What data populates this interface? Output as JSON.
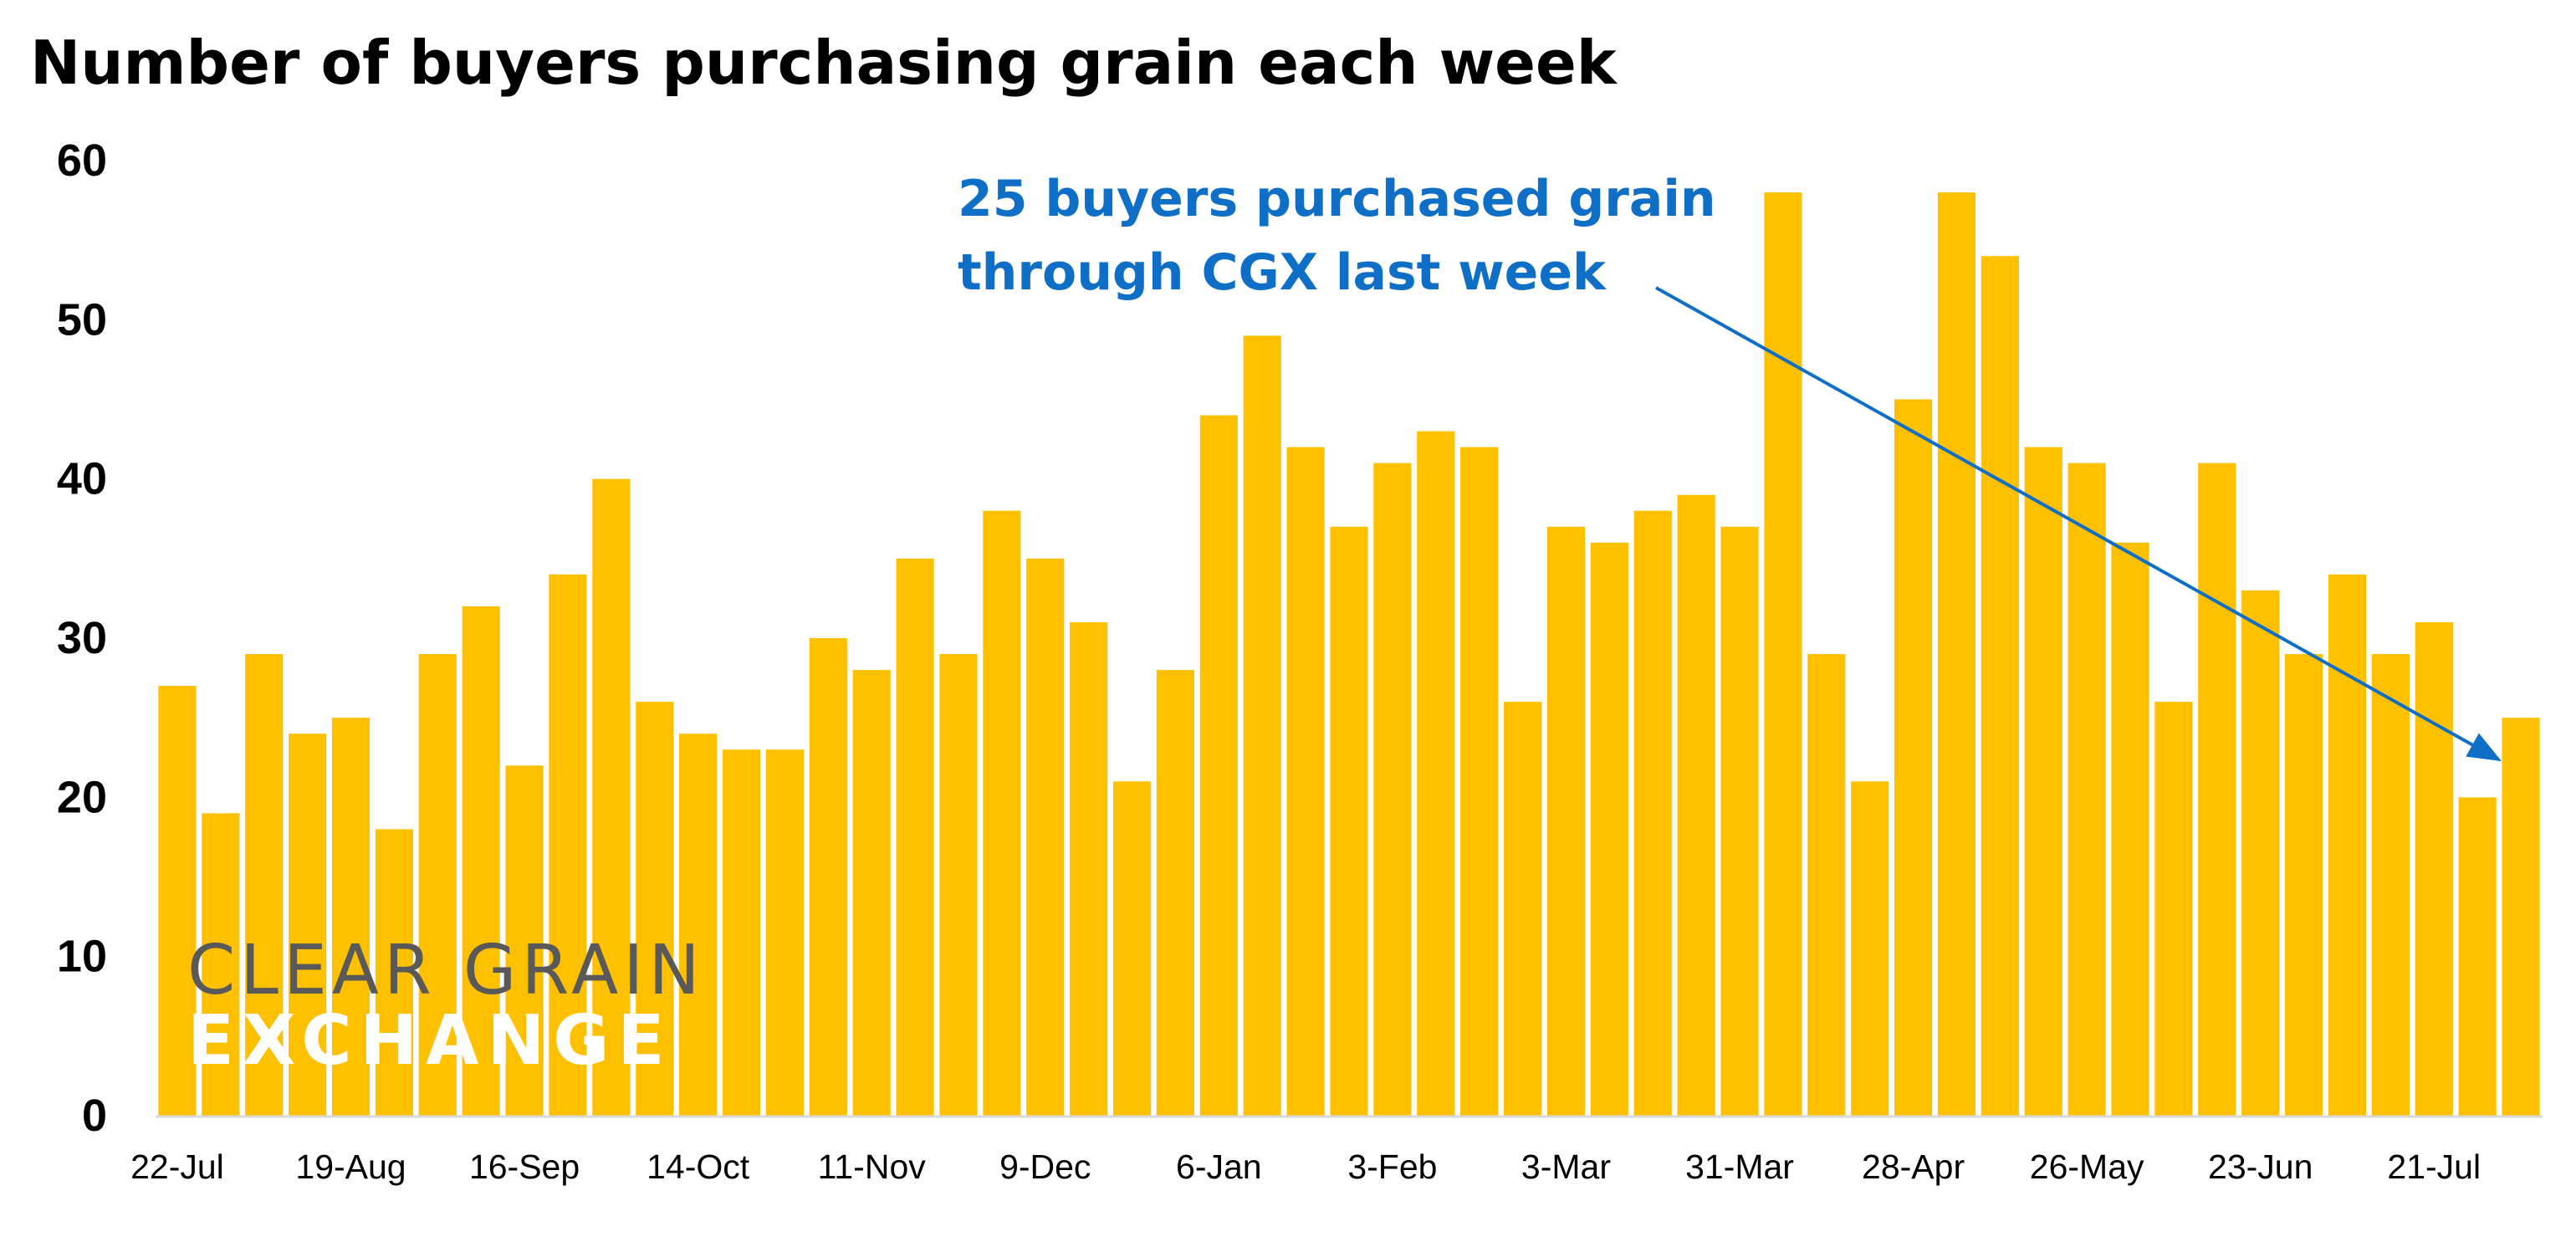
{
  "colors": {
    "bar": "#FFC000",
    "annotation": "#0F6FC6",
    "axis": "#D9D9D9",
    "logo_grey": "#595959",
    "logo_white": "#FFFFFF"
  },
  "logo": {
    "line1": "CLEAR GRAIN",
    "line2": "EXCHANGE"
  },
  "annotation": {
    "line1": "25 buyers purchased grain",
    "line2": "through CGX last week",
    "arrow_icon": "arrow-right-down-icon"
  },
  "chart_data": {
    "type": "bar",
    "title": "Number of buyers purchasing grain each week",
    "xlabel": "",
    "ylabel": "",
    "ylim": [
      0,
      60
    ],
    "yticks": [
      0,
      10,
      20,
      30,
      40,
      50,
      60
    ],
    "grid": false,
    "legend": "none",
    "x_tick_labels": [
      "22-Jul",
      "19-Aug",
      "16-Sep",
      "14-Oct",
      "11-Nov",
      "9-Dec",
      "6-Jan",
      "3-Feb",
      "3-Mar",
      "31-Mar",
      "28-Apr",
      "26-May",
      "23-Jun",
      "21-Jul"
    ],
    "x_tick_every": 4,
    "values": [
      27,
      19,
      29,
      24,
      25,
      18,
      29,
      32,
      22,
      34,
      40,
      26,
      24,
      23,
      23,
      30,
      28,
      35,
      29,
      38,
      35,
      31,
      21,
      28,
      44,
      49,
      42,
      37,
      41,
      43,
      42,
      26,
      37,
      36,
      38,
      39,
      37,
      58,
      29,
      21,
      45,
      58,
      54,
      42,
      41,
      36,
      26,
      41,
      33,
      29,
      34,
      29,
      31,
      20,
      25
    ],
    "annotation_target_index": 54
  }
}
